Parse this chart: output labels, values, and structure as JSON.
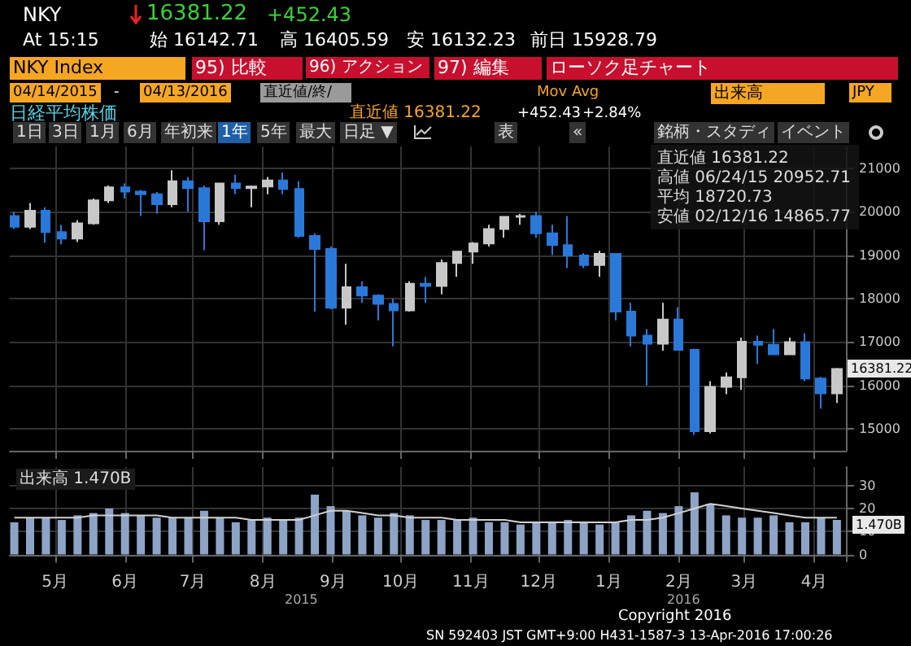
{
  "chart_data": [
    {
      "type": "candlestick",
      "title": "日経平均株価",
      "x": [
        "2015-04-13",
        "2015-04-20",
        "2015-04-27",
        "2015-05-04",
        "2015-05-11",
        "2015-05-18",
        "2015-05-25",
        "2015-06-01",
        "2015-06-08",
        "2015-06-15",
        "2015-06-22",
        "2015-06-29",
        "2015-07-06",
        "2015-07-13",
        "2015-07-20",
        "2015-07-27",
        "2015-08-03",
        "2015-08-10",
        "2015-08-17",
        "2015-08-24",
        "2015-08-31",
        "2015-09-07",
        "2015-09-14",
        "2015-09-21",
        "2015-09-28",
        "2015-10-05",
        "2015-10-12",
        "2015-10-19",
        "2015-10-26",
        "2015-11-02",
        "2015-11-09",
        "2015-11-16",
        "2015-11-23",
        "2015-11-30",
        "2015-12-07",
        "2015-12-14",
        "2015-12-21",
        "2015-12-28",
        "2016-01-04",
        "2016-01-11",
        "2016-01-18",
        "2016-01-25",
        "2016-02-01",
        "2016-02-08",
        "2016-02-15",
        "2016-02-22",
        "2016-02-29",
        "2016-03-07",
        "2016-03-14",
        "2016-03-21",
        "2016-03-28",
        "2016-04-04",
        "2016-04-11"
      ],
      "ohlc": [
        [
          19900,
          20000,
          19600,
          19650
        ],
        [
          19650,
          20200,
          19600,
          20020
        ],
        [
          20020,
          20100,
          19280,
          19530
        ],
        [
          19530,
          19700,
          19250,
          19380
        ],
        [
          19380,
          19800,
          19300,
          19730
        ],
        [
          19730,
          20300,
          19700,
          20260
        ],
        [
          20260,
          20600,
          20200,
          20560
        ],
        [
          20560,
          20650,
          20300,
          20460
        ],
        [
          20460,
          20500,
          19900,
          20400
        ],
        [
          20400,
          20450,
          19950,
          20170
        ],
        [
          20170,
          20952,
          20100,
          20700
        ],
        [
          20700,
          20800,
          20000,
          20540
        ],
        [
          20540,
          20600,
          19115,
          19780
        ],
        [
          19780,
          20650,
          19700,
          20650
        ],
        [
          20650,
          20850,
          20400,
          20540
        ],
        [
          20540,
          20600,
          20100,
          20580
        ],
        [
          20580,
          20800,
          20400,
          20720
        ],
        [
          20720,
          20900,
          20400,
          20520
        ],
        [
          20520,
          20700,
          19400,
          19440
        ],
        [
          19440,
          19500,
          17700,
          19140
        ],
        [
          19140,
          19200,
          17750,
          17790
        ],
        [
          17790,
          18800,
          17400,
          18260
        ],
        [
          18260,
          18400,
          17900,
          18070
        ],
        [
          18070,
          18100,
          17500,
          17880
        ],
        [
          17880,
          18000,
          16900,
          17730
        ],
        [
          17730,
          18400,
          17700,
          18340
        ],
        [
          18340,
          18500,
          17900,
          18290
        ],
        [
          18290,
          18900,
          18100,
          18820
        ],
        [
          18820,
          19100,
          18500,
          19080
        ],
        [
          19080,
          19300,
          18800,
          19270
        ],
        [
          19270,
          19700,
          19200,
          19600
        ],
        [
          19600,
          19900,
          19400,
          19880
        ],
        [
          19880,
          19950,
          19700,
          19900
        ],
        [
          19900,
          20000,
          19400,
          19500
        ],
        [
          19500,
          19700,
          19000,
          19230
        ],
        [
          19230,
          19900,
          18700,
          18990
        ],
        [
          18990,
          19050,
          18700,
          18770
        ],
        [
          18770,
          19100,
          18500,
          19030
        ],
        [
          19030,
          19050,
          17500,
          17700
        ],
        [
          17700,
          17900,
          16900,
          17150
        ],
        [
          17150,
          17300,
          16000,
          16960
        ],
        [
          16960,
          17900,
          16800,
          17520
        ],
        [
          17520,
          17800,
          16800,
          16820
        ],
        [
          16820,
          16850,
          14865,
          14950
        ],
        [
          14950,
          16100,
          14900,
          15970
        ],
        [
          15970,
          16300,
          15800,
          16190
        ],
        [
          16190,
          17100,
          15900,
          17010
        ],
        [
          17010,
          17150,
          16500,
          16940
        ],
        [
          16940,
          17300,
          16700,
          16720
        ],
        [
          16720,
          17100,
          16700,
          17000
        ],
        [
          17000,
          17200,
          16100,
          16160
        ],
        [
          16160,
          16200,
          15470,
          15820
        ],
        [
          15820,
          16405,
          15600,
          16381
        ]
      ],
      "colors": [
        "#2a78d8",
        "#c8c8c8",
        "#2a78d8",
        "#2a78d8",
        "#c8c8c8",
        "#c8c8c8",
        "#c8c8c8",
        "#2a78d8",
        "#2a78d8",
        "#2a78d8",
        "#c8c8c8",
        "#2a78d8",
        "#2a78d8",
        "#c8c8c8",
        "#2a78d8",
        "#c8c8c8",
        "#c8c8c8",
        "#2a78d8",
        "#2a78d8",
        "#2a78d8",
        "#2a78d8",
        "#c8c8c8",
        "#2a78d8",
        "#2a78d8",
        "#2a78d8",
        "#c8c8c8",
        "#2a78d8",
        "#c8c8c8",
        "#c8c8c8",
        "#c8c8c8",
        "#c8c8c8",
        "#c8c8c8",
        "#c8c8c8",
        "#2a78d8",
        "#2a78d8",
        "#2a78d8",
        "#2a78d8",
        "#c8c8c8",
        "#2a78d8",
        "#2a78d8",
        "#2a78d8",
        "#c8c8c8",
        "#2a78d8",
        "#2a78d8",
        "#c8c8c8",
        "#c8c8c8",
        "#c8c8c8",
        "#2a78d8",
        "#2a78d8",
        "#c8c8c8",
        "#2a78d8",
        "#2a78d8",
        "#c8c8c8"
      ],
      "xlim": [
        "2015-04-11",
        "2016-04-15"
      ],
      "xticks": [
        {
          "value": "2015-05-01",
          "label": null
        },
        {
          "value": "2015-06-01",
          "label": null
        },
        {
          "value": "2015-07-01",
          "label": null
        },
        {
          "value": "2015-08-01",
          "label": null
        },
        {
          "value": "2015-09-01",
          "label": null
        },
        {
          "value": "2015-10-01",
          "label": null
        },
        {
          "value": "2015-11-01",
          "label": null
        },
        {
          "value": "2015-12-01",
          "label": null
        },
        {
          "value": "2016-01-01",
          "label": null
        },
        {
          "value": "2016-02-01",
          "label": null
        },
        {
          "value": "2016-03-01",
          "label": null
        },
        {
          "value": "2016-04-01",
          "label": null
        }
      ],
      "ylim": [
        14500,
        21500
      ],
      "yticks": [
        15000,
        16000,
        17000,
        18000,
        19000,
        20000,
        21000
      ],
      "grid": true,
      "tick_labels": "y",
      "annotations": [
        "NKY",
        "16381.22",
        "+452.43",
        "At 15:15",
        "始 16142.71",
        "高 16405.59",
        "安 16132.23",
        "前日 15928.79",
        "NKY Index",
        "95) 比較",
        "96) アクション",
        "97) 編集",
        "ローソク足チャート",
        "04/14/2015",
        "-",
        "04/13/2016",
        "直近値/終/",
        "Mov Avg",
        "出来高",
        "JPY",
        "直近値 16381.22",
        "+452.43",
        "+2.84%",
        "1日",
        "3日",
        "1月",
        "6月",
        "年初来",
        "1年",
        "5年",
        "最大",
        "日足 ▼",
        "表",
        "«",
        "銘柄・スタディ",
        "イベント",
        "直近値 16381.22",
        "高値 06/24/15 20952.71",
        "平均 18720.73",
        "安値 02/12/16 14865.77",
        "16381.22"
      ]
    },
    {
      "type": "bar",
      "x": [
        "2015-04-13",
        "2015-04-20",
        "2015-04-27",
        "2015-05-04",
        "2015-05-11",
        "2015-05-18",
        "2015-05-25",
        "2015-06-01",
        "2015-06-08",
        "2015-06-15",
        "2015-06-22",
        "2015-06-29",
        "2015-07-06",
        "2015-07-13",
        "2015-07-20",
        "2015-07-27",
        "2015-08-03",
        "2015-08-10",
        "2015-08-17",
        "2015-08-24",
        "2015-08-31",
        "2015-09-07",
        "2015-09-14",
        "2015-09-21",
        "2015-09-28",
        "2015-10-05",
        "2015-10-12",
        "2015-10-19",
        "2015-10-26",
        "2015-11-02",
        "2015-11-09",
        "2015-11-16",
        "2015-11-23",
        "2015-11-30",
        "2015-12-07",
        "2015-12-14",
        "2015-12-21",
        "2015-12-28",
        "2016-01-04",
        "2016-01-11",
        "2016-01-18",
        "2016-01-25",
        "2016-02-01",
        "2016-02-08",
        "2016-02-15",
        "2016-02-22",
        "2016-02-29",
        "2016-03-07",
        "2016-03-14",
        "2016-03-21",
        "2016-03-28",
        "2016-04-04",
        "2016-04-11"
      ],
      "series": [
        {
          "type": "bar",
          "color": "#8da4c6",
          "values": [
            14,
            16,
            16,
            15,
            17,
            18,
            20,
            18,
            17,
            16,
            16,
            16,
            19,
            16,
            14,
            15,
            16,
            15,
            16,
            26,
            21,
            19,
            17,
            16,
            18,
            17,
            15,
            15,
            15,
            16,
            14,
            14,
            13,
            14,
            14,
            15,
            14,
            13,
            14,
            17,
            19,
            18,
            21,
            27,
            22,
            17,
            16,
            16,
            17,
            14,
            14,
            16,
            15
          ]
        },
        {
          "type": "line",
          "color": "#d0d0d0",
          "values": [
            16,
            16,
            16,
            16,
            16,
            17,
            17,
            17,
            17,
            17,
            16,
            16,
            16,
            16,
            16,
            15,
            15,
            15,
            15,
            17,
            19,
            19,
            18,
            17,
            17,
            16,
            16,
            16,
            15,
            15,
            15,
            15,
            14,
            14,
            14,
            14,
            14,
            14,
            14,
            15,
            15,
            16,
            18,
            20,
            22,
            21,
            20,
            19,
            18,
            17,
            16,
            16,
            16
          ]
        }
      ],
      "marker": "none",
      "xlim": [
        "2015-04-11",
        "2016-04-15"
      ],
      "xticks": [
        {
          "value": "2015-05-01",
          "label": "5月"
        },
        {
          "value": "2015-06-01",
          "label": "6月"
        },
        {
          "value": "2015-07-01",
          "label": "7月"
        },
        {
          "value": "2015-08-01",
          "label": "8月"
        },
        {
          "value": "2015-09-01",
          "label": "9月"
        },
        {
          "value": "2015-10-01",
          "label": "10月"
        },
        {
          "value": "2015-11-01",
          "label": "11月"
        },
        {
          "value": "2015-12-01",
          "label": "12月"
        },
        {
          "value": "2016-01-01",
          "label": "1月"
        },
        {
          "value": "2016-02-01",
          "label": "2月"
        },
        {
          "value": "2016-03-01",
          "label": "3月"
        },
        {
          "value": "2016-04-01",
          "label": "4月"
        }
      ],
      "ylim": [
        -3,
        38
      ],
      "yticks": [
        0,
        10,
        20,
        30
      ],
      "grid": true,
      "annotations": [
        "出来高 1.470B",
        "1.470B",
        "2015",
        "2016",
        "Copyright 2016",
        "SN 592403 JST  GMT+9:00 H431-1587-3 13-Apr-2016 17:00:26"
      ]
    }
  ]
}
